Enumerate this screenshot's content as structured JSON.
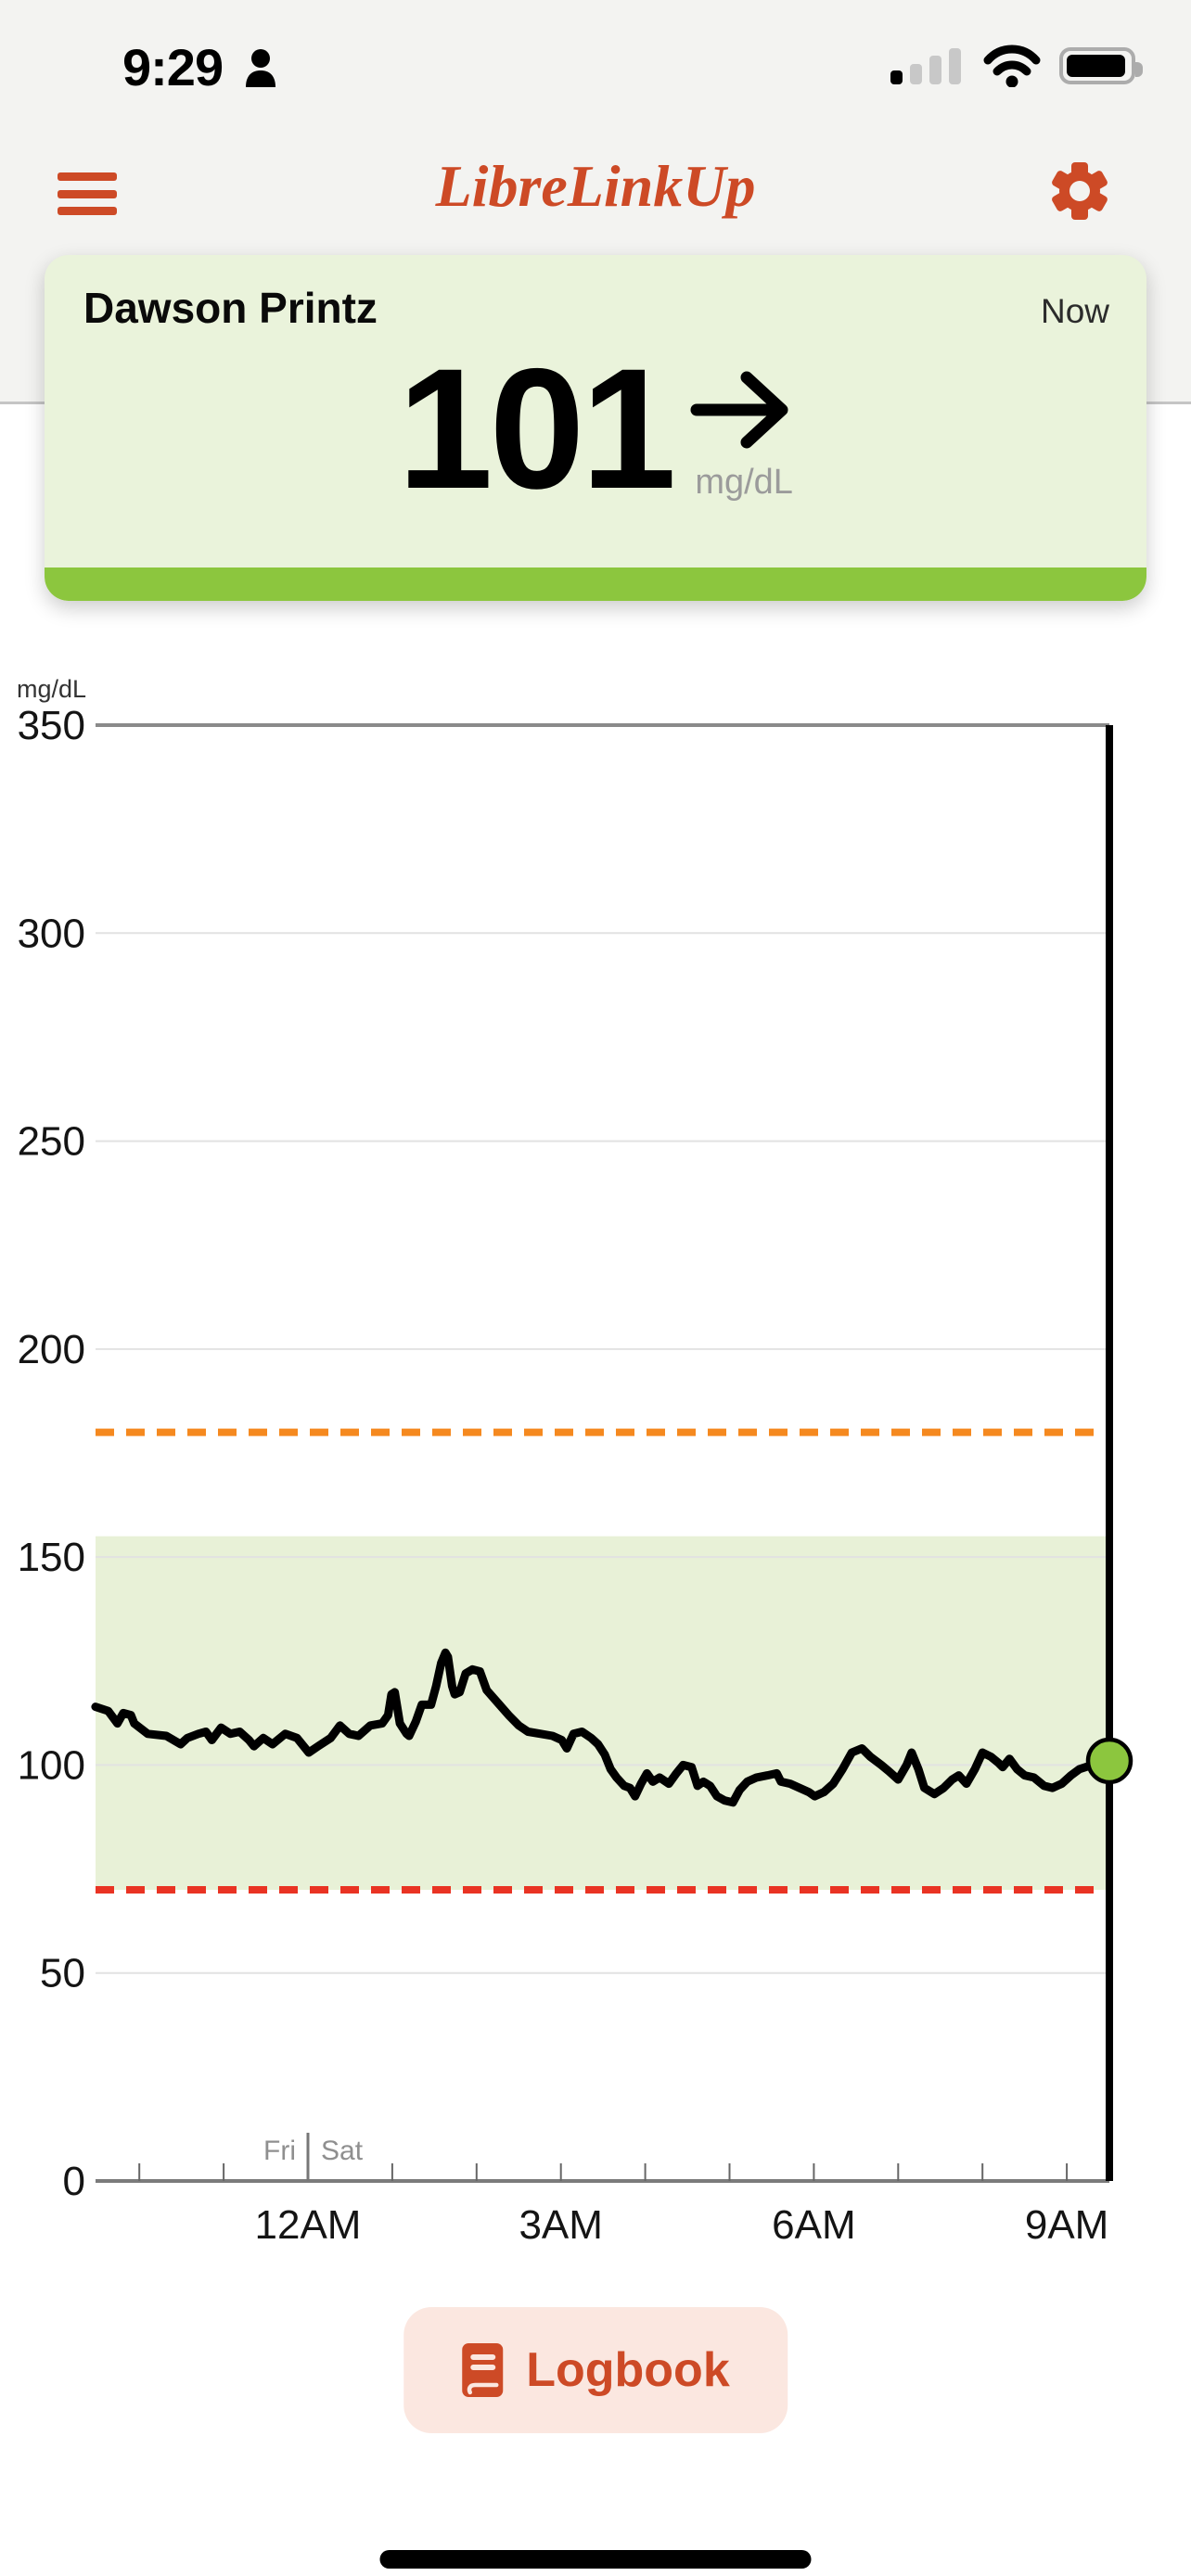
{
  "status_bar": {
    "time": "9:29"
  },
  "header": {
    "title": "LibreLinkUp"
  },
  "patient_card": {
    "name": "Dawson Printz",
    "timestamp": "Now",
    "glucose_value": "101",
    "unit": "mg/dL",
    "trend": "steady"
  },
  "logbook_button": {
    "label": "Logbook"
  },
  "colors": {
    "brand_orange": "#CD4A26",
    "in_range_green": "#8CC63E",
    "card_background": "#EAF3DB",
    "logbook_background": "#FBE7E0"
  },
  "chart_data": {
    "type": "line",
    "title": "24-hour glucose graph",
    "ylabel": "mg/dL",
    "ylim": [
      0,
      350
    ],
    "y_ticks": [
      0,
      50,
      100,
      150,
      200,
      250,
      300,
      350
    ],
    "x_tick_hours": [
      -2,
      -1,
      0,
      1,
      2,
      3,
      4,
      5,
      6,
      7,
      8,
      9
    ],
    "x_labels": [
      {
        "hour": 0,
        "label": "12AM"
      },
      {
        "hour": 3,
        "label": "3AM"
      },
      {
        "hour": 6,
        "label": "6AM"
      },
      {
        "hour": 9,
        "label": "9AM"
      }
    ],
    "day_boundary": {
      "hour": 0,
      "left": "Fri",
      "right": "Sat"
    },
    "target_range": {
      "low": 70,
      "high": 155
    },
    "high_threshold": 180,
    "low_threshold": 70,
    "current": {
      "hour": 9.5,
      "value": 101
    },
    "legend": "none",
    "grid": "horizontal",
    "colors": {
      "trace": "#000000",
      "band": "#E8F1D7",
      "high_line": "#F5891F",
      "low_line": "#E93323",
      "dot": "#8CC63E"
    },
    "series": [
      {
        "name": "glucose_mg_dl",
        "points": [
          [
            -2.52,
            114
          ],
          [
            -2.37,
            113
          ],
          [
            -2.26,
            110
          ],
          [
            -2.19,
            112.5
          ],
          [
            -2.1,
            112
          ],
          [
            -2.06,
            110
          ],
          [
            -1.9,
            107.5
          ],
          [
            -1.68,
            107
          ],
          [
            -1.51,
            105
          ],
          [
            -1.43,
            106.5
          ],
          [
            -1.3,
            107.5
          ],
          [
            -1.21,
            108
          ],
          [
            -1.14,
            106
          ],
          [
            -1.03,
            109
          ],
          [
            -0.92,
            107.5
          ],
          [
            -0.81,
            108
          ],
          [
            -0.7,
            106
          ],
          [
            -0.64,
            104.5
          ],
          [
            -0.53,
            106.5
          ],
          [
            -0.42,
            105
          ],
          [
            -0.27,
            107.5
          ],
          [
            -0.13,
            106.5
          ],
          [
            0.01,
            103
          ],
          [
            0.12,
            104.5
          ],
          [
            0.27,
            106.5
          ],
          [
            0.38,
            109.5
          ],
          [
            0.49,
            107.5
          ],
          [
            0.6,
            107
          ],
          [
            0.74,
            109.5
          ],
          [
            0.88,
            110
          ],
          [
            0.95,
            112
          ],
          [
            0.99,
            117
          ],
          [
            1.03,
            117.5
          ],
          [
            1.09,
            110
          ],
          [
            1.17,
            107.5
          ],
          [
            1.2,
            107
          ],
          [
            1.28,
            110.5
          ],
          [
            1.35,
            114.5
          ],
          [
            1.46,
            114.5
          ],
          [
            1.52,
            119
          ],
          [
            1.58,
            124.5
          ],
          [
            1.63,
            127
          ],
          [
            1.66,
            126
          ],
          [
            1.71,
            119
          ],
          [
            1.74,
            117
          ],
          [
            1.8,
            117.5
          ],
          [
            1.87,
            122
          ],
          [
            1.95,
            123
          ],
          [
            2.04,
            122.5
          ],
          [
            2.12,
            118
          ],
          [
            2.25,
            115
          ],
          [
            2.38,
            112
          ],
          [
            2.5,
            109.5
          ],
          [
            2.61,
            108
          ],
          [
            2.76,
            107.5
          ],
          [
            2.9,
            107
          ],
          [
            3.01,
            106
          ],
          [
            3.07,
            104
          ],
          [
            3.15,
            107.5
          ],
          [
            3.25,
            108
          ],
          [
            3.36,
            106.5
          ],
          [
            3.44,
            105
          ],
          [
            3.52,
            102.5
          ],
          [
            3.59,
            99
          ],
          [
            3.66,
            97
          ],
          [
            3.75,
            95
          ],
          [
            3.82,
            94.5
          ],
          [
            3.88,
            92.5
          ],
          [
            3.95,
            95.5
          ],
          [
            4.02,
            98
          ],
          [
            4.09,
            96
          ],
          [
            4.17,
            97
          ],
          [
            4.28,
            95.5
          ],
          [
            4.37,
            98
          ],
          [
            4.45,
            100
          ],
          [
            4.55,
            99.5
          ],
          [
            4.62,
            95
          ],
          [
            4.69,
            96
          ],
          [
            4.77,
            95
          ],
          [
            4.85,
            92.5
          ],
          [
            4.94,
            91.5
          ],
          [
            5.04,
            91
          ],
          [
            5.12,
            94
          ],
          [
            5.21,
            96
          ],
          [
            5.32,
            97
          ],
          [
            5.45,
            97.5
          ],
          [
            5.56,
            98
          ],
          [
            5.61,
            96
          ],
          [
            5.72,
            95.5
          ],
          [
            5.83,
            94.5
          ],
          [
            5.94,
            93.5
          ],
          [
            6.01,
            92.5
          ],
          [
            6.12,
            93.5
          ],
          [
            6.23,
            95.5
          ],
          [
            6.34,
            99
          ],
          [
            6.45,
            103
          ],
          [
            6.57,
            104
          ],
          [
            6.67,
            102
          ],
          [
            6.8,
            100
          ],
          [
            6.89,
            98.5
          ],
          [
            7,
            96.5
          ],
          [
            7.1,
            100
          ],
          [
            7.16,
            103
          ],
          [
            7.24,
            99
          ],
          [
            7.31,
            94.5
          ],
          [
            7.43,
            93
          ],
          [
            7.54,
            94.5
          ],
          [
            7.64,
            96.5
          ],
          [
            7.72,
            97.5
          ],
          [
            7.81,
            95.5
          ],
          [
            7.91,
            99
          ],
          [
            8,
            103
          ],
          [
            8.1,
            102
          ],
          [
            8.19,
            100.5
          ],
          [
            8.24,
            99.5
          ],
          [
            8.32,
            101.5
          ],
          [
            8.41,
            99
          ],
          [
            8.5,
            97.5
          ],
          [
            8.61,
            97
          ],
          [
            8.73,
            95
          ],
          [
            8.83,
            94.5
          ],
          [
            8.94,
            95.5
          ],
          [
            9.05,
            97.5
          ],
          [
            9.15,
            99
          ],
          [
            9.3,
            100
          ],
          [
            9.45,
            101
          ]
        ]
      }
    ]
  }
}
